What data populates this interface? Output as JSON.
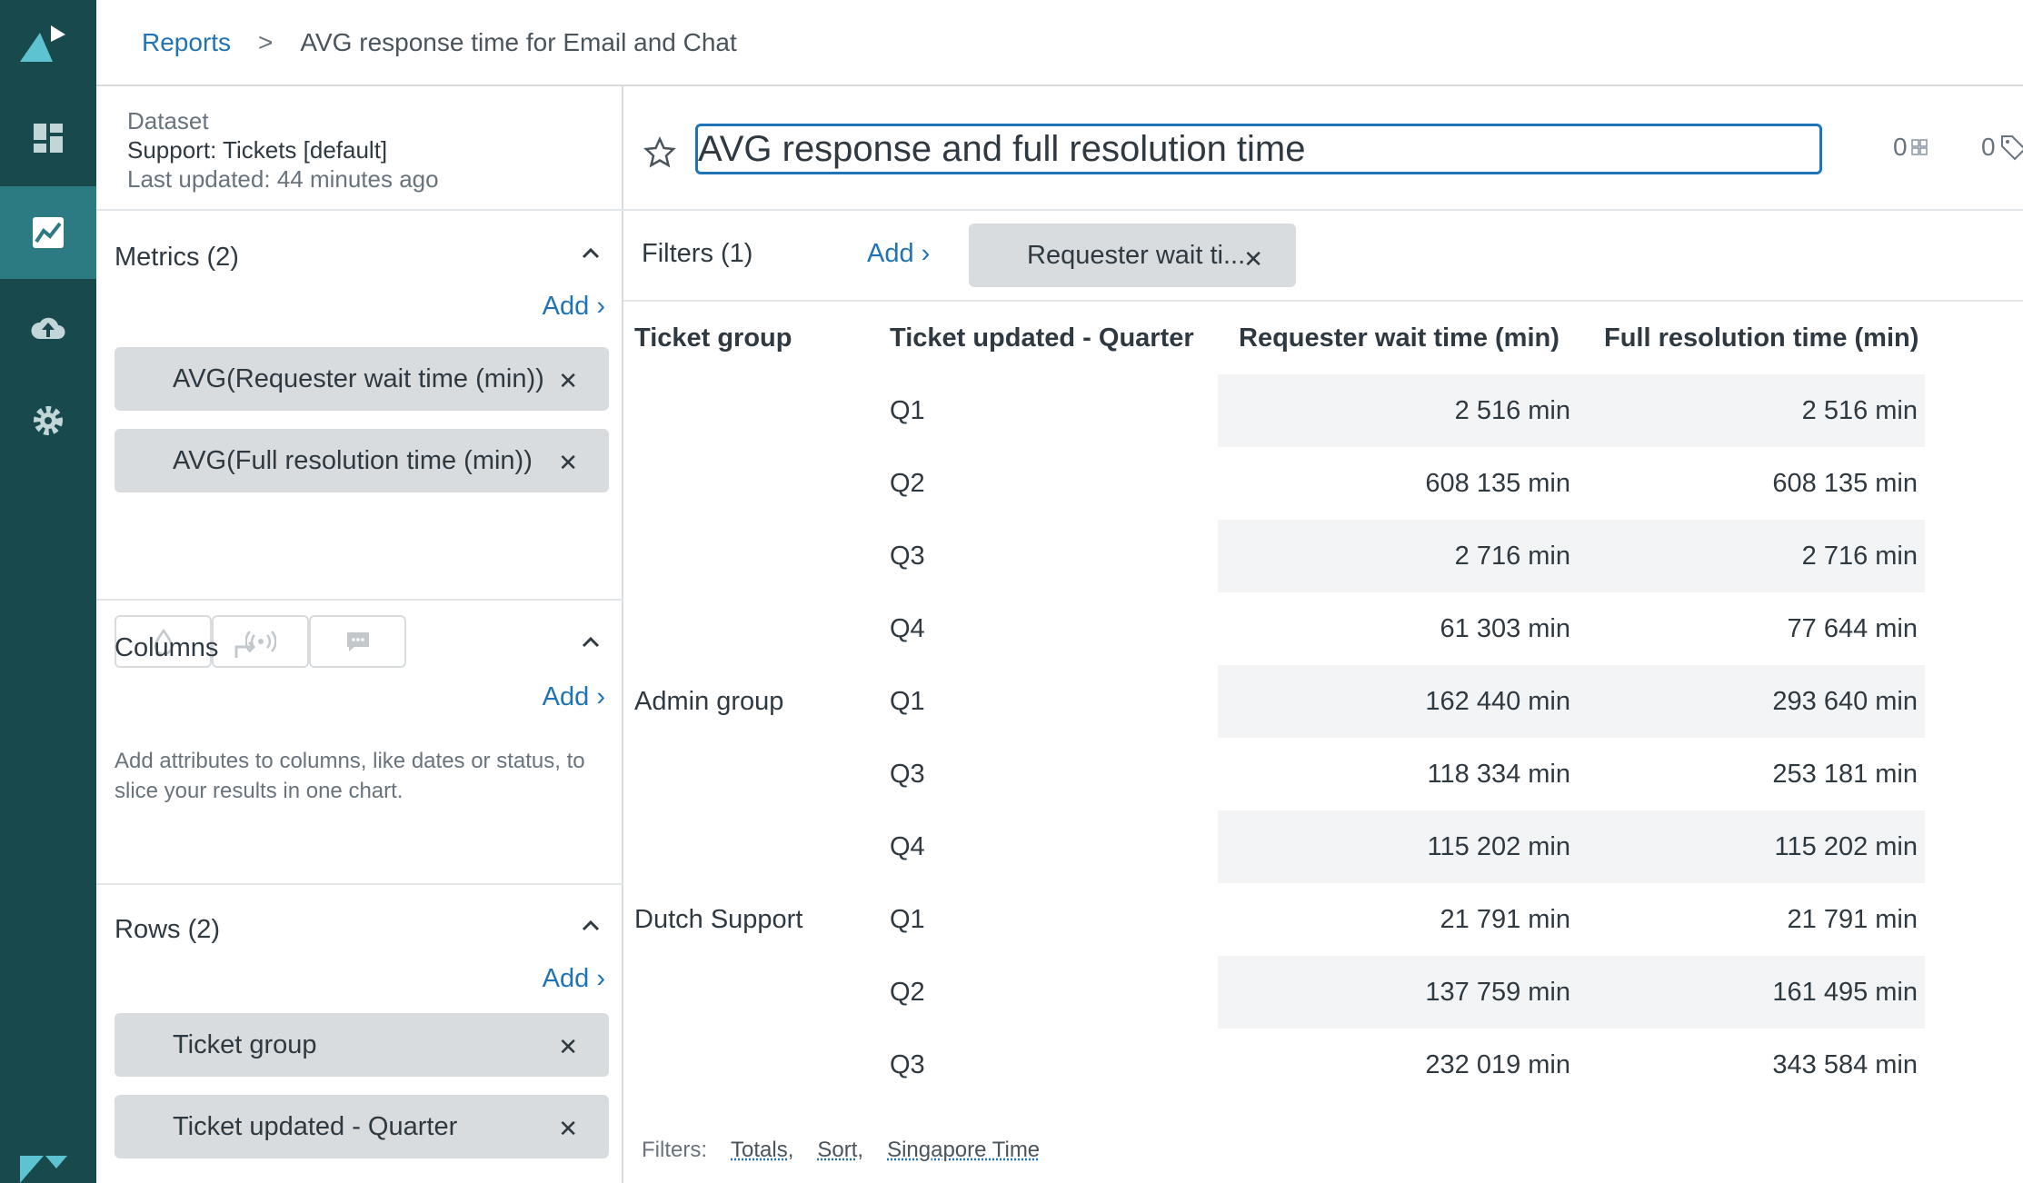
{
  "breadcrumb": {
    "reports": "Reports",
    "sep": ">",
    "current": "AVG response time for Email and Chat"
  },
  "nav": {
    "icons": [
      "zendesk-logo-icon",
      "dashboard-icon",
      "reports-icon",
      "upload-cloud-icon",
      "settings-icon",
      "zendesk-z-icon"
    ],
    "active": "reports-icon",
    "colors": {
      "bg": "#17494d",
      "active": "#2c7a82"
    }
  },
  "dataset": {
    "label": "Dataset",
    "name": "Support: Tickets [default]",
    "updated": "Last updated: 44 minutes ago"
  },
  "metrics": {
    "title": "Metrics (2)",
    "add": "Add ›",
    "items": [
      "AVG(Requester wait time (min))",
      "AVG(Full resolution time (min))"
    ]
  },
  "columns": {
    "title": "Columns",
    "add": "Add ›",
    "help": "Add attributes to columns, like dates or status, to slice your results in one chart."
  },
  "rows": {
    "title": "Rows (2)",
    "add": "Add ›",
    "items": [
      "Ticket group",
      "Ticket updated - Quarter"
    ]
  },
  "report": {
    "title": "AVG response and full resolution time",
    "counter1": "0",
    "counter2": "0"
  },
  "filters": {
    "label": "Filters (1)",
    "add": "Add ›",
    "items": [
      "Requester wait ti..."
    ]
  },
  "table": {
    "headers": [
      "Ticket group",
      "Ticket updated - Quarter",
      "Requester wait time (min)",
      "Full resolution time (min)"
    ],
    "rows": [
      {
        "group": "",
        "quarter": "Q1",
        "wait": "2 516 min",
        "full": "2 516 min"
      },
      {
        "group": "",
        "quarter": "Q2",
        "wait": "608 135 min",
        "full": "608 135 min"
      },
      {
        "group": "",
        "quarter": "Q3",
        "wait": "2 716 min",
        "full": "2 716 min"
      },
      {
        "group": "",
        "quarter": "Q4",
        "wait": "61 303 min",
        "full": "77 644 min"
      },
      {
        "group": "Admin group",
        "quarter": "Q1",
        "wait": "162 440 min",
        "full": "293 640 min"
      },
      {
        "group": "",
        "quarter": "Q3",
        "wait": "118 334 min",
        "full": "253 181 min"
      },
      {
        "group": "",
        "quarter": "Q4",
        "wait": "115 202 min",
        "full": "115 202 min"
      },
      {
        "group": "Dutch Support",
        "quarter": "Q1",
        "wait": "21 791 min",
        "full": "21 791 min"
      },
      {
        "group": "",
        "quarter": "Q2",
        "wait": "137 759 min",
        "full": "161 495 min"
      },
      {
        "group": "",
        "quarter": "Q3",
        "wait": "232 019 min",
        "full": "343 584 min"
      }
    ]
  },
  "footer": {
    "label": "Filters:",
    "totals": "Totals,",
    "sort": "Sort,",
    "timezone": "Singapore Time"
  }
}
